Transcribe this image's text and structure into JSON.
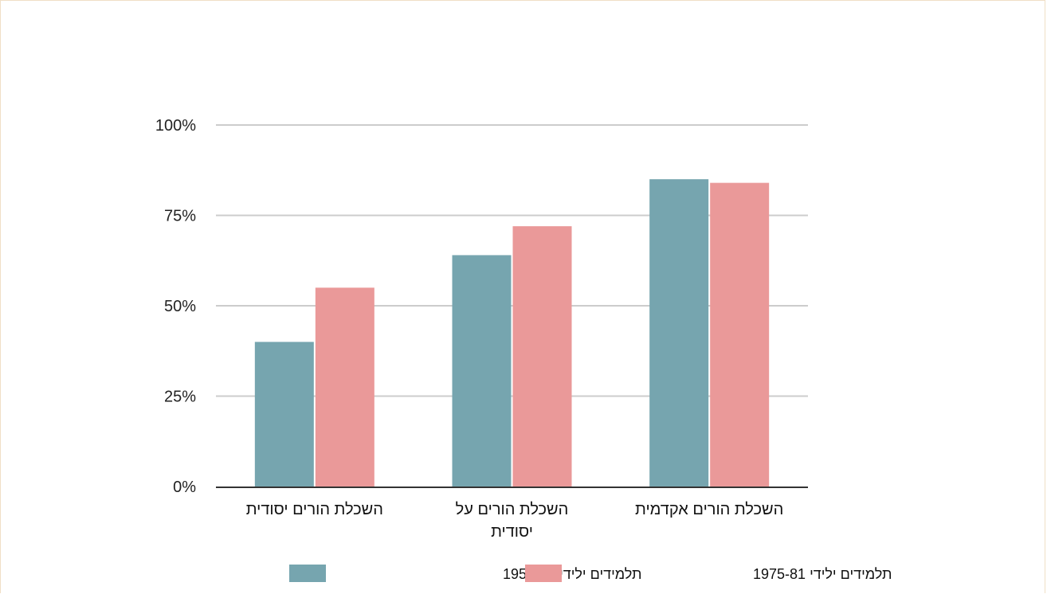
{
  "chart_data": {
    "type": "bar",
    "title": "",
    "xlabel": "",
    "ylabel": "",
    "ylim": [
      0,
      100
    ],
    "yticks": [
      0,
      25,
      50,
      75,
      100
    ],
    "ytick_labels": [
      "0%",
      "25%",
      "50%",
      "75%",
      "100%"
    ],
    "grid": true,
    "legend_position": "bottom",
    "categories": [
      [
        "השכלת הורים יסודית"
      ],
      [
        "השכלת הורים על",
        "יסודית"
      ],
      [
        "השכלת הורים אקדמית"
      ]
    ],
    "series": [
      {
        "name": "תלמידים ילידי 1955-59",
        "color": "#76a5af",
        "values": [
          40,
          64,
          85
        ]
      },
      {
        "name": "תלמידים ילידי 1975-81",
        "color": "#ea9999",
        "values": [
          55,
          72,
          84
        ]
      }
    ]
  }
}
